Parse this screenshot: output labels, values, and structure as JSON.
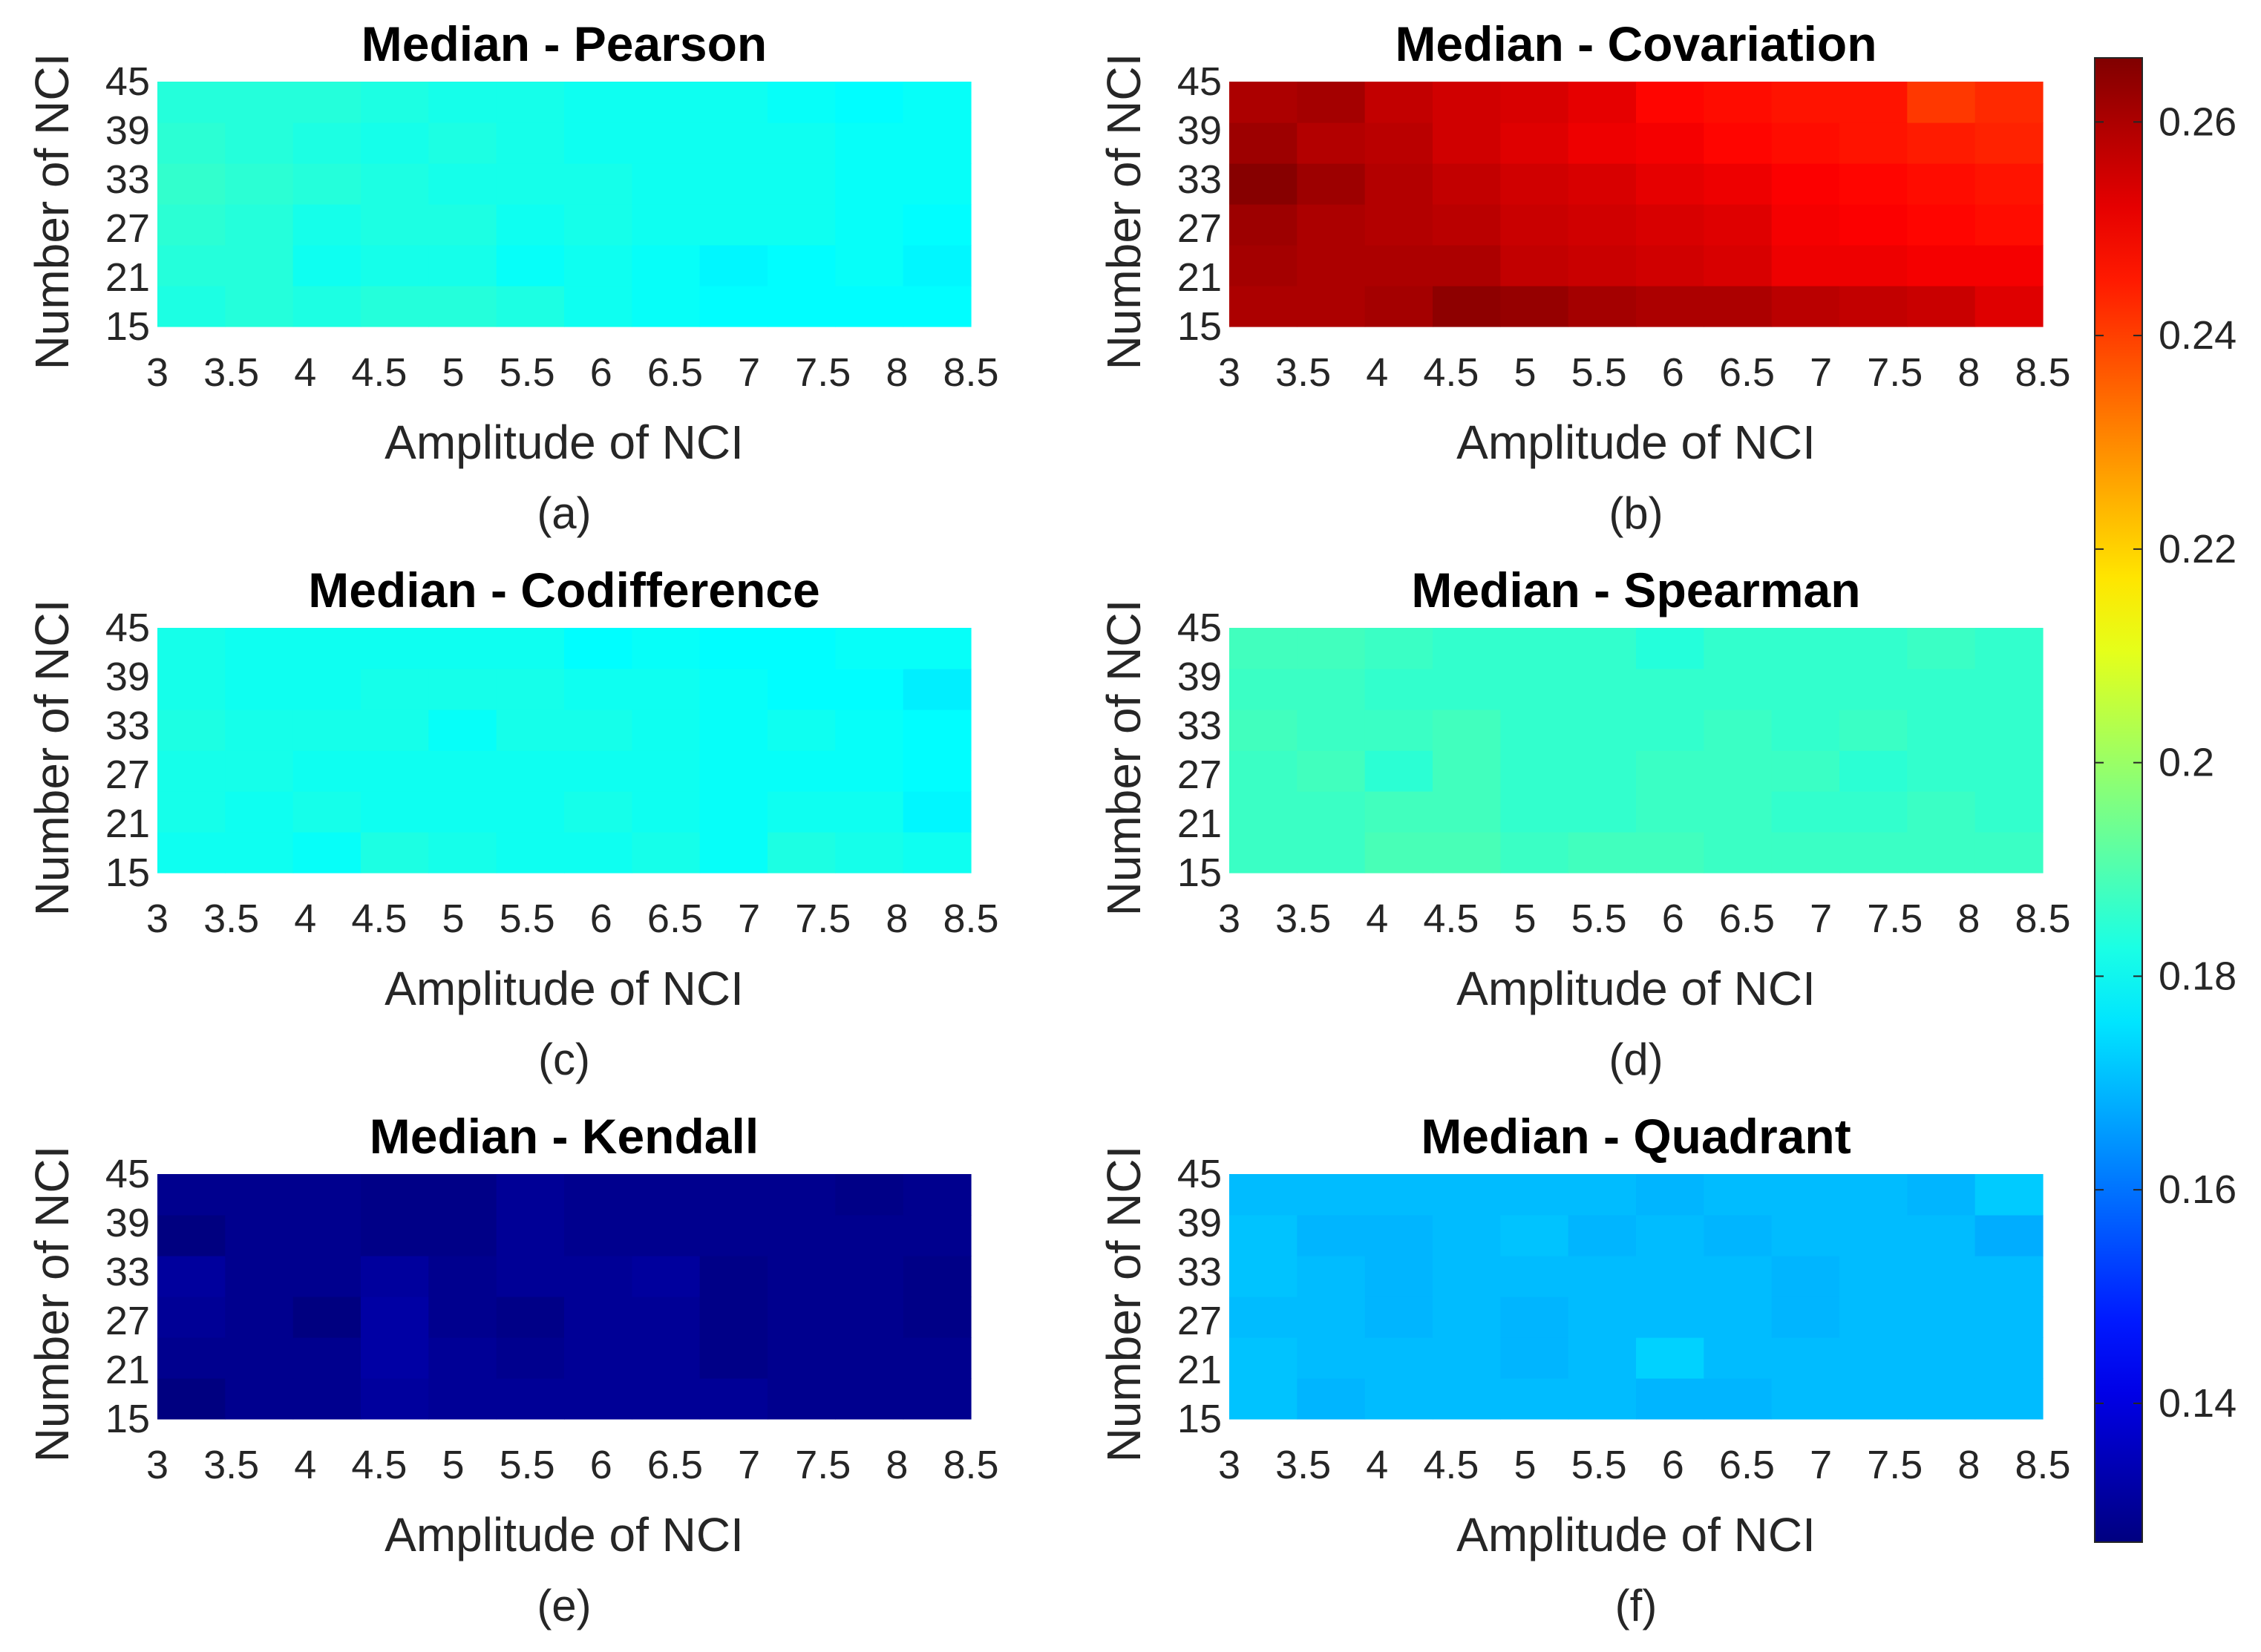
{
  "colorbar": {
    "colormap": "jet",
    "min": 0.127,
    "max": 0.266,
    "ticks": [
      0.14,
      0.16,
      0.18,
      0.2,
      0.22,
      0.24,
      0.26
    ],
    "tick_labels": [
      "0.14",
      "0.16",
      "0.18",
      "0.2",
      "0.22",
      "0.24",
      "0.26"
    ]
  },
  "chart_data": [
    {
      "type": "heatmap",
      "title": "Median - Pearson",
      "caption": "(a)",
      "xlabel": "Amplitude of NCI",
      "ylabel": "Number of NCI",
      "x": [
        "3",
        "3.5",
        "4",
        "4.5",
        "5",
        "5.5",
        "6",
        "6.5",
        "7",
        "7.5",
        "8",
        "8.5"
      ],
      "y": [
        "15",
        "21",
        "27",
        "33",
        "39",
        "45"
      ],
      "values_bottom_to_top": [
        [
          0.183,
          0.184,
          0.183,
          0.184,
          0.184,
          0.183,
          0.181,
          0.18,
          0.179,
          0.179,
          0.179,
          0.179
        ],
        [
          0.184,
          0.184,
          0.181,
          0.182,
          0.182,
          0.18,
          0.181,
          0.18,
          0.178,
          0.179,
          0.18,
          0.178
        ],
        [
          0.185,
          0.184,
          0.182,
          0.183,
          0.183,
          0.181,
          0.182,
          0.181,
          0.181,
          0.181,
          0.18,
          0.179
        ],
        [
          0.186,
          0.185,
          0.184,
          0.183,
          0.182,
          0.182,
          0.182,
          0.181,
          0.181,
          0.181,
          0.18,
          0.18
        ],
        [
          0.185,
          0.184,
          0.183,
          0.182,
          0.183,
          0.182,
          0.181,
          0.181,
          0.181,
          0.181,
          0.18,
          0.18
        ],
        [
          0.184,
          0.184,
          0.184,
          0.183,
          0.182,
          0.182,
          0.181,
          0.181,
          0.181,
          0.18,
          0.179,
          0.18
        ]
      ]
    },
    {
      "type": "heatmap",
      "title": "Median - Covariation",
      "caption": "(b)",
      "xlabel": "Amplitude of NCI",
      "ylabel": "Number of NCI",
      "x": [
        "3",
        "3.5",
        "4",
        "4.5",
        "5",
        "5.5",
        "6",
        "6.5",
        "7",
        "7.5",
        "8",
        "8.5"
      ],
      "y": [
        "15",
        "21",
        "27",
        "33",
        "39",
        "45"
      ],
      "values_bottom_to_top": [
        [
          0.26,
          0.26,
          0.261,
          0.264,
          0.263,
          0.261,
          0.26,
          0.26,
          0.258,
          0.257,
          0.256,
          0.253
        ],
        [
          0.261,
          0.26,
          0.26,
          0.26,
          0.257,
          0.256,
          0.255,
          0.254,
          0.251,
          0.251,
          0.25,
          0.25
        ],
        [
          0.262,
          0.26,
          0.259,
          0.258,
          0.256,
          0.255,
          0.254,
          0.253,
          0.25,
          0.249,
          0.248,
          0.247
        ],
        [
          0.265,
          0.262,
          0.259,
          0.257,
          0.255,
          0.254,
          0.252,
          0.251,
          0.249,
          0.248,
          0.247,
          0.246
        ],
        [
          0.262,
          0.259,
          0.258,
          0.255,
          0.253,
          0.251,
          0.25,
          0.248,
          0.247,
          0.246,
          0.245,
          0.244
        ],
        [
          0.26,
          0.261,
          0.257,
          0.255,
          0.254,
          0.252,
          0.248,
          0.247,
          0.246,
          0.246,
          0.241,
          0.243
        ]
      ]
    },
    {
      "type": "heatmap",
      "title": "Median - Codifference",
      "caption": "(c)",
      "xlabel": "Amplitude of NCI",
      "ylabel": "Number of NCI",
      "x": [
        "3",
        "3.5",
        "4",
        "4.5",
        "5",
        "5.5",
        "6",
        "6.5",
        "7",
        "7.5",
        "8",
        "8.5"
      ],
      "y": [
        "15",
        "21",
        "27",
        "33",
        "39",
        "45"
      ],
      "values_bottom_to_top": [
        [
          0.181,
          0.181,
          0.18,
          0.183,
          0.182,
          0.181,
          0.181,
          0.182,
          0.18,
          0.183,
          0.182,
          0.181
        ],
        [
          0.182,
          0.181,
          0.182,
          0.181,
          0.181,
          0.181,
          0.182,
          0.181,
          0.18,
          0.181,
          0.181,
          0.178
        ],
        [
          0.182,
          0.182,
          0.181,
          0.181,
          0.181,
          0.181,
          0.181,
          0.181,
          0.18,
          0.18,
          0.18,
          0.179
        ],
        [
          0.183,
          0.182,
          0.182,
          0.182,
          0.18,
          0.182,
          0.182,
          0.181,
          0.18,
          0.181,
          0.18,
          0.179
        ],
        [
          0.182,
          0.181,
          0.181,
          0.182,
          0.182,
          0.182,
          0.181,
          0.181,
          0.18,
          0.179,
          0.179,
          0.177
        ],
        [
          0.182,
          0.181,
          0.181,
          0.181,
          0.181,
          0.181,
          0.179,
          0.18,
          0.179,
          0.179,
          0.18,
          0.18
        ]
      ]
    },
    {
      "type": "heatmap",
      "title": "Median - Spearman",
      "caption": "(d)",
      "xlabel": "Amplitude of NCI",
      "ylabel": "Number of NCI",
      "x": [
        "3",
        "3.5",
        "4",
        "4.5",
        "5",
        "5.5",
        "6",
        "6.5",
        "7",
        "7.5",
        "8",
        "8.5"
      ],
      "y": [
        "15",
        "21",
        "27",
        "33",
        "39",
        "45"
      ],
      "values_bottom_to_top": [
        [
          0.187,
          0.187,
          0.189,
          0.189,
          0.187,
          0.188,
          0.188,
          0.187,
          0.187,
          0.187,
          0.187,
          0.187
        ],
        [
          0.187,
          0.187,
          0.188,
          0.188,
          0.186,
          0.186,
          0.187,
          0.187,
          0.186,
          0.186,
          0.187,
          0.186
        ],
        [
          0.187,
          0.188,
          0.185,
          0.188,
          0.186,
          0.186,
          0.187,
          0.187,
          0.187,
          0.185,
          0.186,
          0.186
        ],
        [
          0.188,
          0.187,
          0.187,
          0.188,
          0.186,
          0.186,
          0.186,
          0.187,
          0.186,
          0.187,
          0.186,
          0.186
        ],
        [
          0.187,
          0.187,
          0.186,
          0.186,
          0.186,
          0.186,
          0.186,
          0.186,
          0.186,
          0.186,
          0.186,
          0.186
        ],
        [
          0.188,
          0.188,
          0.187,
          0.186,
          0.186,
          0.186,
          0.184,
          0.186,
          0.186,
          0.186,
          0.187,
          0.186
        ]
      ]
    },
    {
      "type": "heatmap",
      "title": "Median - Kendall",
      "caption": "(e)",
      "xlabel": "Amplitude of NCI",
      "ylabel": "Number of NCI",
      "x": [
        "3",
        "3.5",
        "4",
        "4.5",
        "5",
        "5.5",
        "6",
        "6.5",
        "7",
        "7.5",
        "8",
        "8.5"
      ],
      "y": [
        "15",
        "21",
        "27",
        "33",
        "39",
        "45"
      ],
      "values_bottom_to_top": [
        [
          0.127,
          0.129,
          0.129,
          0.131,
          0.13,
          0.13,
          0.13,
          0.13,
          0.13,
          0.129,
          0.129,
          0.129
        ],
        [
          0.129,
          0.129,
          0.129,
          0.132,
          0.13,
          0.129,
          0.13,
          0.13,
          0.128,
          0.129,
          0.129,
          0.129
        ],
        [
          0.13,
          0.129,
          0.127,
          0.132,
          0.129,
          0.128,
          0.13,
          0.13,
          0.128,
          0.129,
          0.129,
          0.128
        ],
        [
          0.131,
          0.129,
          0.129,
          0.131,
          0.129,
          0.13,
          0.13,
          0.131,
          0.128,
          0.129,
          0.129,
          0.128
        ],
        [
          0.127,
          0.129,
          0.129,
          0.128,
          0.128,
          0.13,
          0.129,
          0.129,
          0.129,
          0.129,
          0.129,
          0.129
        ],
        [
          0.129,
          0.129,
          0.129,
          0.128,
          0.128,
          0.13,
          0.129,
          0.129,
          0.129,
          0.129,
          0.128,
          0.129
        ]
      ]
    },
    {
      "type": "heatmap",
      "title": "Median - Quadrant",
      "caption": "(f)",
      "xlabel": "Amplitude of NCI",
      "ylabel": "Number of NCI",
      "x": [
        "3",
        "3.5",
        "4",
        "4.5",
        "5",
        "5.5",
        "6",
        "6.5",
        "7",
        "7.5",
        "8",
        "8.5"
      ],
      "y": [
        "15",
        "21",
        "27",
        "33",
        "39",
        "45"
      ],
      "values_bottom_to_top": [
        [
          0.171,
          0.169,
          0.17,
          0.17,
          0.17,
          0.17,
          0.169,
          0.169,
          0.17,
          0.17,
          0.17,
          0.17
        ],
        [
          0.171,
          0.17,
          0.17,
          0.17,
          0.169,
          0.17,
          0.173,
          0.17,
          0.17,
          0.17,
          0.17,
          0.17
        ],
        [
          0.17,
          0.17,
          0.169,
          0.17,
          0.169,
          0.17,
          0.17,
          0.17,
          0.169,
          0.17,
          0.17,
          0.17
        ],
        [
          0.171,
          0.17,
          0.169,
          0.17,
          0.17,
          0.17,
          0.17,
          0.17,
          0.169,
          0.17,
          0.17,
          0.17
        ],
        [
          0.171,
          0.169,
          0.169,
          0.17,
          0.171,
          0.169,
          0.17,
          0.169,
          0.17,
          0.17,
          0.17,
          0.168
        ],
        [
          0.17,
          0.17,
          0.17,
          0.17,
          0.17,
          0.17,
          0.169,
          0.17,
          0.17,
          0.17,
          0.169,
          0.172
        ]
      ]
    }
  ]
}
